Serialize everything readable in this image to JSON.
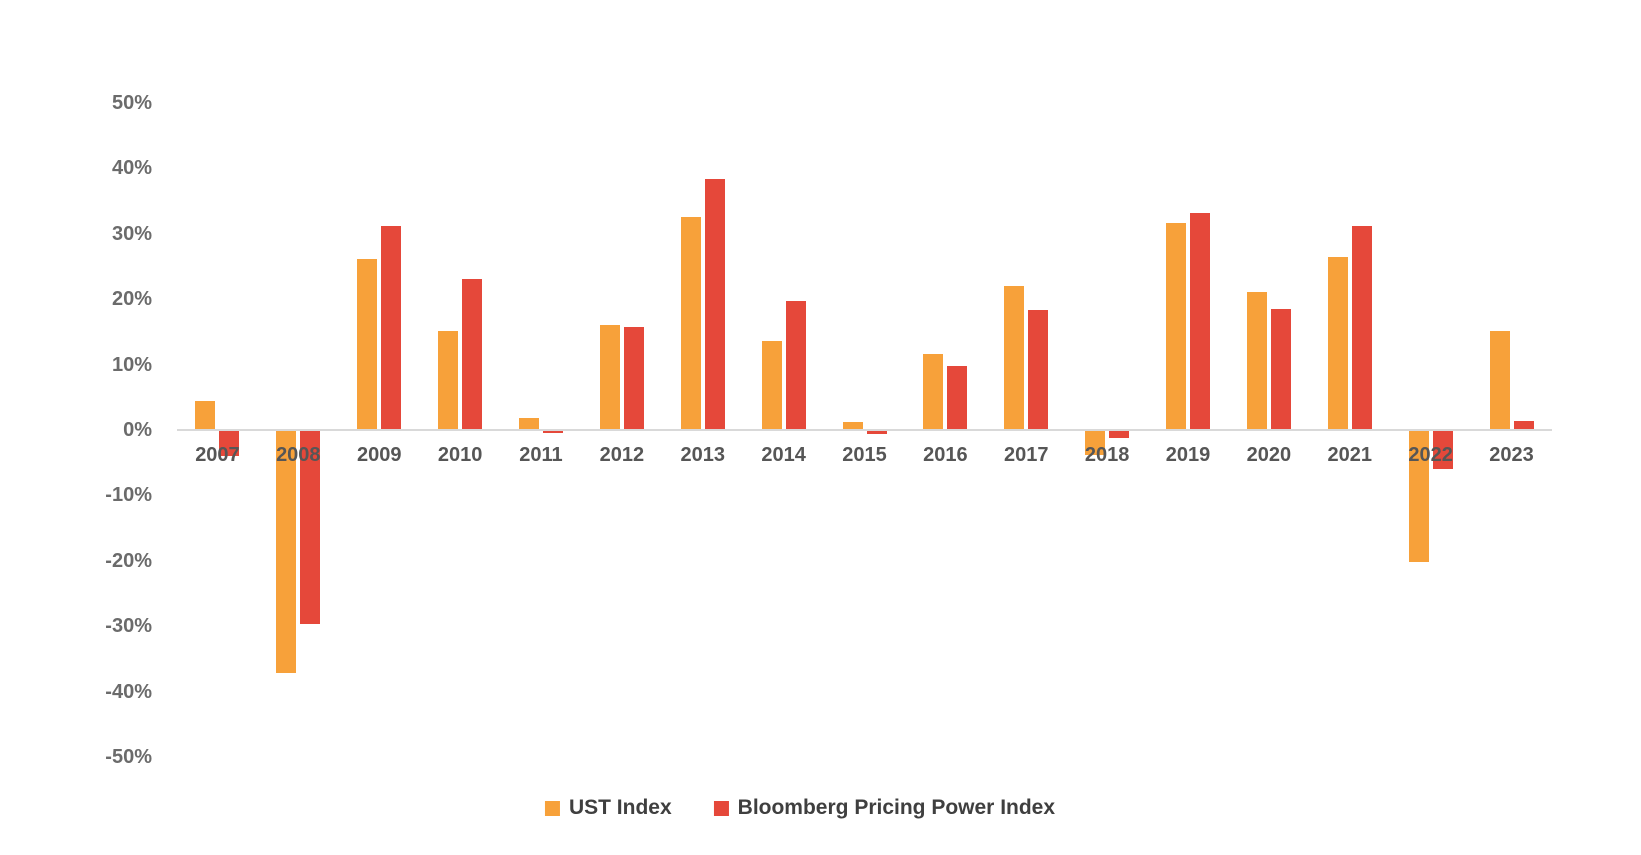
{
  "chart_data": {
    "type": "bar",
    "title": "",
    "xlabel": "",
    "ylabel": "",
    "grid": false,
    "legend_position": "bottom-center",
    "ylim": [
      -50,
      50
    ],
    "categories": [
      "2007",
      "2008",
      "2009",
      "2010",
      "2011",
      "2012",
      "2013",
      "2014",
      "2015",
      "2016",
      "2017",
      "2018",
      "2019",
      "2020",
      "2021",
      "2022",
      "2023"
    ],
    "series": [
      {
        "name": "UST Index",
        "color": "#F7A13A",
        "values": [
          4.3,
          -37,
          26,
          15,
          1.7,
          15.9,
          32.4,
          13.4,
          1.1,
          11.4,
          21.8,
          -3.7,
          31.5,
          21,
          26.3,
          -20,
          15
        ]
      },
      {
        "name": "Bloomberg Pricing Power Index",
        "color": "#E5483A",
        "values": [
          -3.8,
          -29.5,
          31,
          23,
          -0.3,
          15.6,
          38.3,
          19.5,
          -0.5,
          9.7,
          18.2,
          -1,
          33,
          18.4,
          31,
          -5.8,
          1.2
        ]
      }
    ],
    "yticks": [
      {
        "label": "50%",
        "value": 50
      },
      {
        "label": "40%",
        "value": 40
      },
      {
        "label": "30%",
        "value": 30
      },
      {
        "label": "20%",
        "value": 20
      },
      {
        "label": "10%",
        "value": 10
      },
      {
        "label": "0%",
        "value": 0
      },
      {
        "label": "-10%",
        "value": -10
      },
      {
        "label": "-20%",
        "value": -20
      },
      {
        "label": "-30%",
        "value": -30
      },
      {
        "label": "-40%",
        "value": -40
      },
      {
        "label": "-50%",
        "value": -50
      }
    ]
  }
}
